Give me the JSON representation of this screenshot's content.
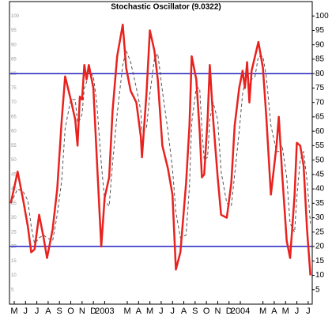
{
  "chart_data": {
    "type": "line",
    "title": "Stochastic Oscillator (9.0322)",
    "x": [
      -0.3,
      0.3,
      0.8,
      1.2,
      1.5,
      1.8,
      2.2,
      2.6,
      2.9,
      3.4,
      3.8,
      4.2,
      4.5,
      5.0,
      5.4,
      5.6,
      5.8,
      6.0,
      6.2,
      6.4,
      6.6,
      7.0,
      7.3,
      7.7,
      8.0,
      8.4,
      8.7,
      9.1,
      9.6,
      9.9,
      10.3,
      10.8,
      11.2,
      11.3,
      11.7,
      12.0,
      12.4,
      12.7,
      13.1,
      13.6,
      14.0,
      14.3,
      14.7,
      15.2,
      15.5,
      15.7,
      16.1,
      16.4,
      16.6,
      16.8,
      17.1,
      17.3,
      17.6,
      18.0,
      18.3,
      18.8,
      19.2,
      19.5,
      19.9,
      20.2,
      20.4,
      20.6,
      20.8,
      21.0,
      21.3,
      21.6,
      22.0,
      22.3,
      22.7,
      23.2,
      23.4,
      23.7,
      24.1,
      24.4,
      24.8,
      25.0,
      25.3,
      25.6,
      25.9,
      26.2
    ],
    "series": [
      {
        "color": "#e8221e",
        "values": [
          35,
          46,
          36,
          27,
          18,
          19,
          31,
          23,
          16,
          26,
          40,
          64,
          79,
          71,
          64,
          55,
          72,
          71,
          83,
          78,
          83,
          75,
          51,
          20,
          37,
          44,
          67,
          86,
          97,
          82,
          74,
          70,
          58,
          51,
          73,
          95,
          88,
          78,
          55,
          47,
          38,
          12,
          18,
          42,
          62,
          86,
          78,
          60,
          44,
          45,
          64,
          83,
          64,
          44,
          31,
          30,
          42,
          62,
          75,
          81,
          75,
          84,
          70,
          81,
          86,
          91,
          82,
          65,
          38,
          55,
          65,
          45,
          22,
          16,
          38,
          56,
          55,
          48,
          26,
          10
        ]
      },
      {
        "color": "#555555",
        "values": [
          35,
          40,
          39,
          36,
          27,
          21,
          23,
          24,
          23,
          22,
          31,
          43,
          61,
          71,
          71,
          63,
          64,
          66,
          75,
          77,
          81,
          79,
          70,
          49,
          36,
          34,
          49,
          66,
          83,
          88,
          84,
          75,
          67,
          60,
          61,
          73,
          85,
          87,
          74,
          60,
          47,
          32,
          23,
          24,
          41,
          63,
          75,
          75,
          61,
          50,
          51,
          64,
          70,
          64,
          46,
          35,
          34,
          45,
          60,
          73,
          77,
          80,
          76,
          78,
          79,
          86,
          86,
          79,
          62,
          53,
          53,
          55,
          44,
          28,
          25,
          37,
          50,
          53,
          43,
          28
        ]
      }
    ],
    "hlines": [
      20,
      80
    ],
    "hline_color": "#1f1fbf",
    "xlim": [
      -0.42,
      26.36
    ],
    "ylim": [
      0,
      105
    ],
    "xticks": [
      {
        "value": 0,
        "label": "M"
      },
      {
        "value": 1,
        "label": "J"
      },
      {
        "value": 2,
        "label": "J"
      },
      {
        "value": 3,
        "label": "A"
      },
      {
        "value": 4,
        "label": "S"
      },
      {
        "value": 5,
        "label": "O"
      },
      {
        "value": 6,
        "label": "N"
      },
      {
        "value": 7,
        "label": "D"
      },
      {
        "value": 8,
        "label": "2003"
      },
      {
        "value": 10,
        "label": "M"
      },
      {
        "value": 11,
        "label": "A"
      },
      {
        "value": 12,
        "label": "M"
      },
      {
        "value": 13,
        "label": "J"
      },
      {
        "value": 14,
        "label": "J"
      },
      {
        "value": 15,
        "label": "A"
      },
      {
        "value": 16,
        "label": "S"
      },
      {
        "value": 17,
        "label": "O"
      },
      {
        "value": 18,
        "label": "N"
      },
      {
        "value": 19,
        "label": "D"
      },
      {
        "value": 20,
        "label": "2004"
      },
      {
        "value": 22,
        "label": "M"
      },
      {
        "value": 23,
        "label": "A"
      },
      {
        "value": 24,
        "label": "M"
      },
      {
        "value": 25,
        "label": "J"
      },
      {
        "value": 26,
        "label": "J"
      }
    ],
    "yticks": [
      5,
      10,
      15,
      20,
      25,
      30,
      35,
      40,
      45,
      50,
      55,
      60,
      65,
      70,
      75,
      80,
      85,
      90,
      95,
      100
    ]
  }
}
